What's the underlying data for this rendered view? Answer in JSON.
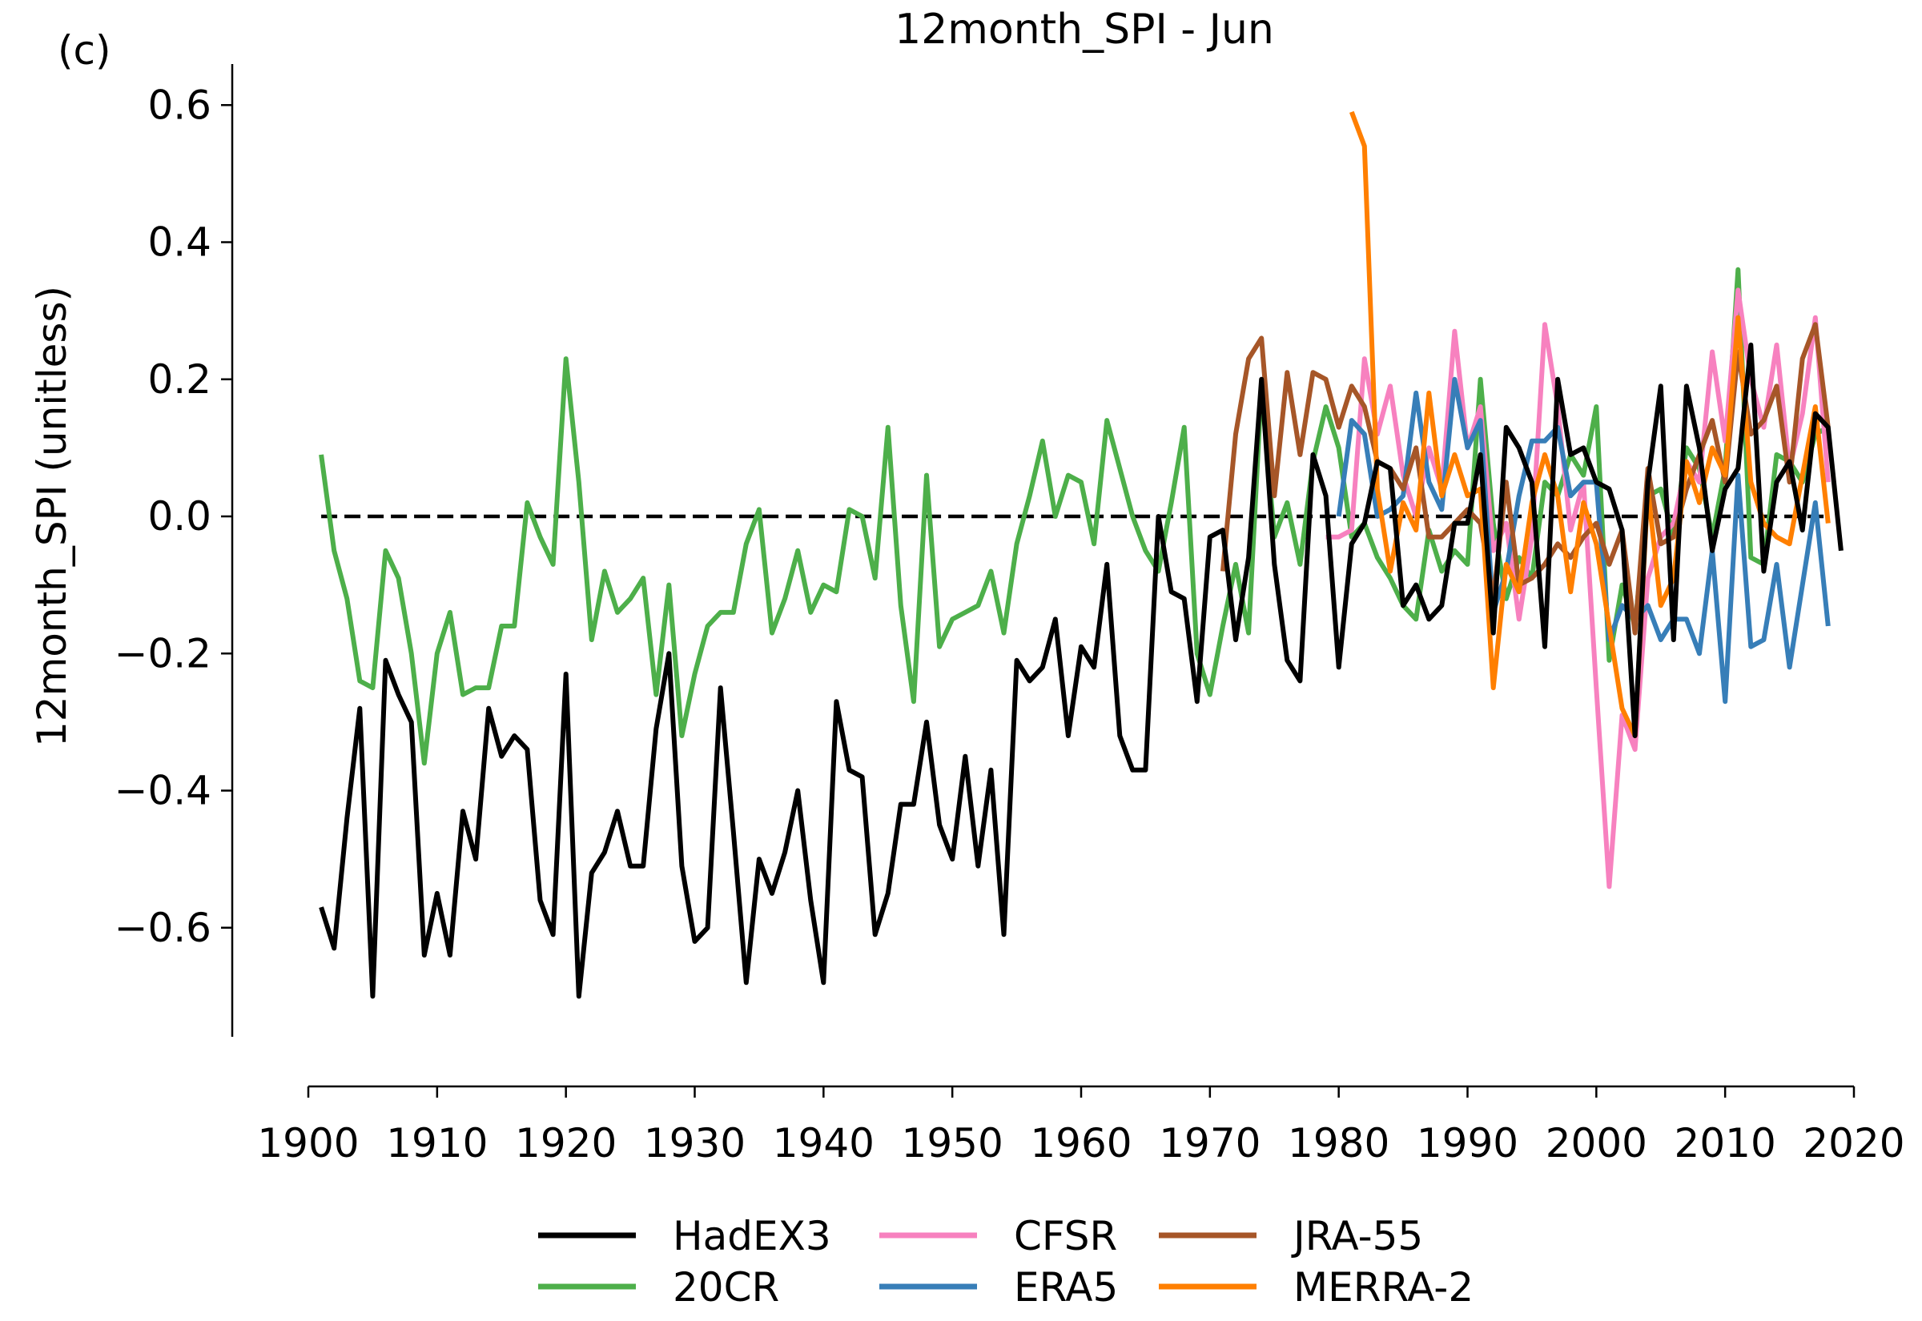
{
  "chart_data": {
    "type": "line",
    "panel_label": "(c)",
    "title": "12month_SPI - Jun",
    "xlabel": "",
    "ylabel": "12month_SPI (unitless)",
    "xlim": [
      1900,
      2020
    ],
    "ylim": [
      -0.81,
      0.66
    ],
    "xticks": [
      1900,
      1910,
      1920,
      1930,
      1940,
      1950,
      1960,
      1970,
      1980,
      1990,
      2000,
      2010,
      2020
    ],
    "xtick_labels": [
      "1900",
      "1910",
      "1920",
      "1930",
      "1940",
      "1950",
      "1960",
      "1970",
      "1980",
      "1990",
      "2000",
      "2010",
      "2020"
    ],
    "yticks": [
      -0.6,
      -0.4,
      -0.2,
      0.0,
      0.2,
      0.4,
      0.6
    ],
    "ytick_labels": [
      "−0.6",
      "−0.4",
      "−0.2",
      "0.0",
      "0.2",
      "0.4",
      "0.6"
    ],
    "reference_line": {
      "y": 0.0,
      "style": "dashed",
      "color": "#000000"
    },
    "grid": false,
    "legend_position": "bottom-center",
    "legend_columns": 3,
    "series": [
      {
        "name": "20CR",
        "color": "#4daf4a",
        "x_start": 1901,
        "values": [
          0.09,
          -0.05,
          -0.12,
          -0.24,
          -0.25,
          -0.05,
          -0.09,
          -0.2,
          -0.36,
          -0.2,
          -0.14,
          -0.26,
          -0.25,
          -0.25,
          -0.16,
          -0.16,
          0.02,
          -0.03,
          -0.07,
          0.23,
          0.05,
          -0.18,
          -0.08,
          -0.14,
          -0.12,
          -0.09,
          -0.26,
          -0.1,
          -0.32,
          -0.23,
          -0.16,
          -0.14,
          -0.14,
          -0.04,
          0.01,
          -0.17,
          -0.12,
          -0.05,
          -0.14,
          -0.1,
          -0.11,
          0.01,
          0.0,
          -0.09,
          0.13,
          -0.13,
          -0.27,
          0.06,
          -0.19,
          -0.15,
          -0.14,
          -0.13,
          -0.08,
          -0.17,
          -0.04,
          0.03,
          0.11,
          0.0,
          0.06,
          0.05,
          -0.04,
          0.14,
          0.07,
          0.0,
          -0.05,
          -0.08,
          0.02,
          0.13,
          -0.2,
          -0.26,
          -0.16,
          -0.07,
          -0.17,
          0.19,
          -0.03,
          0.02,
          -0.07,
          0.08,
          0.16,
          0.1,
          -0.03,
          -0.01,
          -0.06,
          -0.09,
          -0.13,
          -0.15,
          -0.02,
          -0.08,
          -0.05,
          -0.07,
          0.2,
          -0.01,
          -0.12,
          -0.06,
          -0.09,
          0.05,
          0.03,
          0.09,
          0.06,
          0.16,
          -0.21,
          -0.1,
          -0.16,
          0.03,
          0.04,
          -0.03,
          0.1,
          0.07,
          -0.03,
          0.07,
          0.36,
          -0.06,
          -0.07,
          0.09,
          0.08,
          0.05,
          0.12,
          0.13
        ]
      },
      {
        "name": "CFSR",
        "color": "#f781bf",
        "x_start": 1979,
        "values": [
          -0.03,
          -0.03,
          -0.02,
          0.23,
          0.12,
          0.19,
          0.06,
          0.0,
          0.1,
          0.04,
          0.27,
          0.1,
          0.16,
          -0.05,
          -0.01,
          -0.15,
          -0.03,
          0.28,
          0.16,
          -0.02,
          0.05,
          -0.25,
          -0.54,
          -0.29,
          -0.34,
          -0.09,
          -0.03,
          -0.01,
          0.08,
          0.05,
          0.24,
          0.11,
          0.33,
          0.2,
          0.13,
          0.25,
          0.07,
          0.15,
          0.29,
          0.05
        ]
      },
      {
        "name": "ERA5",
        "color": "#377eb8",
        "x_start": 1980,
        "values": [
          0.0,
          0.14,
          0.12,
          0.0,
          0.01,
          0.03,
          0.18,
          0.05,
          0.01,
          0.2,
          0.1,
          0.14,
          -0.14,
          -0.08,
          0.03,
          0.11,
          0.11,
          0.13,
          0.03,
          0.05,
          0.05,
          -0.18,
          -0.13,
          -0.15,
          -0.13,
          -0.18,
          -0.15,
          -0.15,
          -0.2,
          -0.05,
          -0.27,
          0.06,
          -0.19,
          -0.18,
          -0.07,
          -0.22,
          -0.1,
          0.02,
          -0.16
        ]
      },
      {
        "name": "JRA-55",
        "color": "#a65628",
        "x_start": 1971,
        "values": [
          -0.08,
          0.12,
          0.23,
          0.26,
          0.03,
          0.21,
          0.09,
          0.21,
          0.2,
          0.13,
          0.19,
          0.16,
          0.08,
          0.07,
          0.04,
          0.1,
          -0.03,
          -0.03,
          -0.01,
          0.01,
          -0.01,
          -0.12,
          0.05,
          -0.1,
          -0.09,
          -0.07,
          -0.04,
          -0.06,
          -0.03,
          -0.01,
          -0.07,
          -0.02,
          -0.17,
          0.07,
          -0.04,
          -0.03,
          0.04,
          0.09,
          0.14,
          0.05,
          0.24,
          0.12,
          0.14,
          0.19,
          0.05,
          0.23,
          0.28,
          0.13
        ]
      },
      {
        "name": "MERRA-2",
        "color": "#ff7f00",
        "x_start": 1981,
        "values": [
          0.59,
          0.54,
          0.04,
          -0.08,
          0.02,
          -0.02,
          0.18,
          0.03,
          0.09,
          0.03,
          0.04,
          -0.25,
          -0.07,
          -0.11,
          0.02,
          0.09,
          0.03,
          -0.11,
          0.02,
          -0.04,
          -0.16,
          -0.28,
          -0.32,
          0.04,
          -0.13,
          -0.09,
          0.08,
          0.02,
          0.1,
          0.06,
          0.29,
          0.05,
          -0.01,
          -0.03,
          -0.04,
          0.06,
          0.16,
          -0.01
        ]
      },
      {
        "name": "HadEX3",
        "color": "#000000",
        "x_start": 1901,
        "values": [
          -0.57,
          -0.63,
          -0.44,
          -0.28,
          -0.7,
          -0.21,
          -0.26,
          -0.3,
          -0.64,
          -0.55,
          -0.64,
          -0.43,
          -0.5,
          -0.28,
          -0.35,
          -0.32,
          -0.34,
          -0.56,
          -0.61,
          -0.23,
          -0.7,
          -0.52,
          -0.49,
          -0.43,
          -0.51,
          -0.51,
          -0.31,
          -0.2,
          -0.51,
          -0.62,
          -0.6,
          -0.25,
          -0.46,
          -0.68,
          -0.5,
          -0.55,
          -0.49,
          -0.4,
          -0.56,
          -0.68,
          -0.27,
          -0.37,
          -0.38,
          -0.61,
          -0.55,
          -0.42,
          -0.42,
          -0.3,
          -0.45,
          -0.5,
          -0.35,
          -0.51,
          -0.37,
          -0.61,
          -0.21,
          -0.24,
          -0.22,
          -0.15,
          -0.32,
          -0.19,
          -0.22,
          -0.07,
          -0.32,
          -0.37,
          -0.37,
          0.0,
          -0.11,
          -0.12,
          -0.27,
          -0.03,
          -0.02,
          -0.18,
          -0.06,
          0.2,
          -0.07,
          -0.21,
          -0.24,
          0.09,
          0.03,
          -0.22,
          -0.04,
          -0.01,
          0.08,
          0.07,
          -0.13,
          -0.1,
          -0.15,
          -0.13,
          -0.01,
          -0.01,
          0.09,
          -0.17,
          0.13,
          0.1,
          0.05,
          -0.19,
          0.2,
          0.09,
          0.1,
          0.05,
          0.04,
          -0.02,
          -0.32,
          0.05,
          0.19,
          -0.18,
          0.19,
          0.1,
          -0.05,
          0.04,
          0.07,
          0.25,
          -0.08,
          0.05,
          0.08,
          -0.02,
          0.15,
          0.13,
          -0.05
        ]
      }
    ],
    "legend": [
      {
        "name": "HadEX3",
        "color": "#000000"
      },
      {
        "name": "20CR",
        "color": "#4daf4a"
      },
      {
        "name": "CFSR",
        "color": "#f781bf"
      },
      {
        "name": "ERA5",
        "color": "#377eb8"
      },
      {
        "name": "JRA-55",
        "color": "#a65628"
      },
      {
        "name": "MERRA-2",
        "color": "#ff7f00"
      }
    ]
  }
}
